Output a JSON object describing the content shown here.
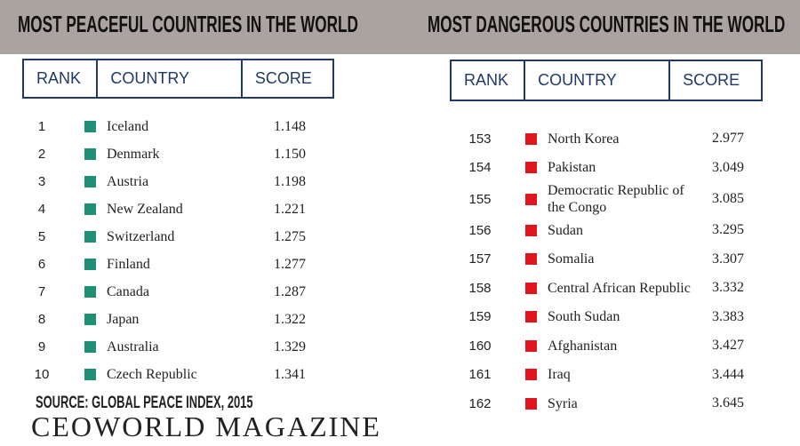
{
  "left": {
    "title": "MOST PEACEFUL COUNTRIES IN THE WORLD",
    "headers": [
      "RANK",
      "COUNTRY",
      "SCORE"
    ],
    "rows": [
      [
        "1",
        "Iceland",
        "1.148"
      ],
      [
        "2",
        "Denmark",
        "1.150"
      ],
      [
        "3",
        "Austria",
        "1.198"
      ],
      [
        "4",
        "New Zealand",
        "1.221"
      ],
      [
        "5",
        "Switzerland",
        "1.275"
      ],
      [
        "6",
        "Finland",
        "1.277"
      ],
      [
        "7",
        "Canada",
        "1.287"
      ],
      [
        "8",
        "Japan",
        "1.322"
      ],
      [
        "9",
        "Australia",
        "1.329"
      ],
      [
        "10",
        "Czech Republic",
        "1.341"
      ]
    ]
  },
  "right": {
    "title": "MOST DANGEROUS COUNTRIES IN THE WORLD",
    "headers": [
      "RANK",
      "COUNTRY",
      "SCORE"
    ],
    "rows": [
      [
        "153",
        "North Korea",
        "2.977"
      ],
      [
        "154",
        "Pakistan",
        "3.049"
      ],
      [
        "155",
        "Democratic Republic of the Congo",
        "3.085"
      ],
      [
        "156",
        "Sudan",
        "3.295"
      ],
      [
        "157",
        "Somalia",
        "3.307"
      ],
      [
        "158",
        "Central African Republic",
        "3.332"
      ],
      [
        "159",
        "South Sudan",
        "3.383"
      ],
      [
        "160",
        "Afghanistan",
        "3.427"
      ],
      [
        "161",
        "Iraq",
        "3.444"
      ],
      [
        "162",
        "Syria",
        "3.645"
      ]
    ]
  },
  "source": "SOURCE: GLOBAL PEACE INDEX, 2015",
  "brand": "CEOWORLD MAGAZINE"
}
